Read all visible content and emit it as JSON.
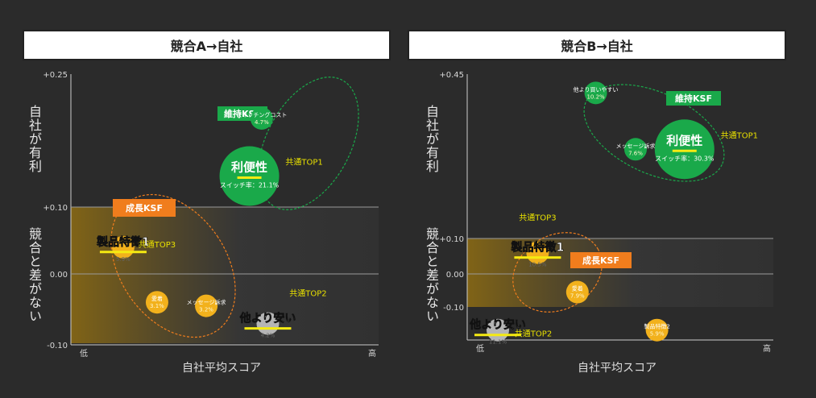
{
  "colors": {
    "background": "#2b2b2b",
    "green": "#1aa94a",
    "gold": "#f2b11c",
    "orange": "#f07d1d",
    "yellow_label": "#e8e000",
    "underline": "#f5ea12",
    "gray_bubble": "#b5b5b5"
  },
  "common": {
    "y_label_top": "自社が有利",
    "y_label_bottom": "競合と差がない",
    "x_label": "自社平均スコア",
    "x_low": "低",
    "x_high": "高"
  },
  "chart_data": [
    {
      "type": "scatter",
      "title": "競合A→自社",
      "xlabel": "自社平均スコア",
      "ylabel": "",
      "ylim": [
        -0.1,
        0.25
      ],
      "y_ticks": [
        "+0.25",
        "+0.10",
        "0.00",
        "-0.10"
      ],
      "y_tick_values": [
        0.25,
        0.1,
        0.0,
        -0.1
      ],
      "ksf_labels": [
        {
          "text": "維持KSF",
          "color": "green"
        },
        {
          "text": "成長KSF",
          "color": "orange"
        }
      ],
      "points": [
        {
          "label": "スイッチングコスト",
          "sub": "4.7%",
          "x": 0.62,
          "y": 0.2,
          "color": "green",
          "size": "small"
        },
        {
          "label": "利便性",
          "sub": "スイッチ率：21.1%",
          "x": 0.58,
          "y": 0.135,
          "color": "green",
          "size": "large",
          "highlight": true,
          "tag": "共通TOP1"
        },
        {
          "label": "製品特徴1",
          "sub": "5.9%",
          "x": 0.17,
          "y": 0.04,
          "color": "gold",
          "size": "small",
          "highlight": true,
          "tag": "共通TOP3"
        },
        {
          "label": "愛着",
          "sub": "3.1%",
          "x": 0.28,
          "y": -0.04,
          "color": "gold",
          "size": "small"
        },
        {
          "label": "メッセージ訴求",
          "sub": "3.2%",
          "x": 0.44,
          "y": -0.045,
          "color": "gold",
          "size": "small"
        },
        {
          "label": "他より安い",
          "sub": "4.2%",
          "x": 0.64,
          "y": -0.07,
          "color": "gray",
          "size": "small",
          "highlight": true,
          "tag": "共通TOP2"
        }
      ]
    },
    {
      "type": "scatter",
      "title": "競合B→自社",
      "xlabel": "自社平均スコア",
      "ylabel": "",
      "ylim": [
        -0.2,
        0.45
      ],
      "y_ticks": [
        "+0.45",
        "+0.10",
        "0.00",
        "-0.10"
      ],
      "y_tick_values": [
        0.45,
        0.1,
        0.0,
        -0.1
      ],
      "ksf_labels": [
        {
          "text": "維持KSF",
          "color": "green"
        },
        {
          "text": "成長KSF",
          "color": "orange"
        }
      ],
      "points": [
        {
          "label": "他より買いやすい",
          "sub": "10.2%",
          "x": 0.42,
          "y": 0.41,
          "color": "green",
          "size": "small"
        },
        {
          "label": "メッセージ訴求",
          "sub": "7.6%",
          "x": 0.55,
          "y": 0.29,
          "color": "green",
          "size": "small"
        },
        {
          "label": "利便性",
          "sub": "スイッチ率：30.3%",
          "x": 0.71,
          "y": 0.29,
          "color": "green",
          "size": "large",
          "highlight": true,
          "tag": "共通TOP1"
        },
        {
          "label": "製品特徴1",
          "sub": "10.5%",
          "x": 0.23,
          "y": 0.06,
          "color": "gold",
          "size": "small",
          "highlight": true,
          "tag": "共通TOP3"
        },
        {
          "label": "愛着",
          "sub": "7.9%",
          "x": 0.36,
          "y": -0.055,
          "color": "gold",
          "size": "small"
        },
        {
          "label": "他より安い",
          "sub": "11.1%",
          "x": 0.1,
          "y": -0.17,
          "color": "gray",
          "size": "small",
          "highlight": true,
          "tag": "共通TOP2"
        },
        {
          "label": "製品特徴2",
          "sub": "5.9%",
          "x": 0.62,
          "y": -0.17,
          "color": "gold",
          "size": "small"
        }
      ]
    }
  ]
}
